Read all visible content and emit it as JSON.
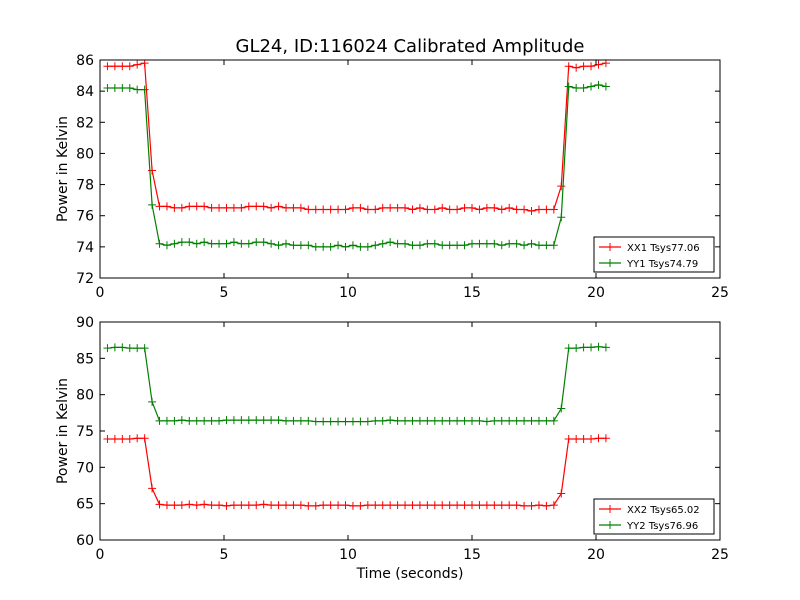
{
  "figure": {
    "title": "GL24, ID:116024 Calibrated Amplitude",
    "xlabel": "Time (seconds)"
  },
  "chart_data": [
    {
      "type": "line",
      "title": "GL24, ID:116024 Calibrated Amplitude",
      "xlabel": "",
      "ylabel": "Power in Kelvin",
      "xlim": [
        0,
        25
      ],
      "ylim": [
        72,
        86
      ],
      "xticks": [
        0,
        5,
        10,
        15,
        20,
        25
      ],
      "yticks": [
        72,
        74,
        76,
        78,
        80,
        82,
        84,
        86
      ],
      "grid": false,
      "legend": "lower-right",
      "series": [
        {
          "name": "XX1 Tsys77.06",
          "color": "#ff0000",
          "x": [
            0.3,
            0.6,
            0.9,
            1.2,
            1.5,
            1.8,
            2.1,
            2.4,
            2.7,
            3.0,
            3.3,
            3.6,
            3.9,
            4.2,
            4.5,
            4.8,
            5.1,
            5.4,
            5.7,
            6.0,
            6.3,
            6.6,
            6.9,
            7.2,
            7.5,
            7.8,
            8.1,
            8.4,
            8.7,
            9.0,
            9.3,
            9.6,
            9.9,
            10.2,
            10.5,
            10.8,
            11.1,
            11.4,
            11.7,
            12.0,
            12.3,
            12.6,
            12.9,
            13.2,
            13.5,
            13.8,
            14.1,
            14.4,
            14.7,
            15.0,
            15.3,
            15.6,
            15.9,
            16.2,
            16.5,
            16.8,
            17.1,
            17.4,
            17.7,
            18.0,
            18.3,
            18.6,
            18.9,
            19.2,
            19.5,
            19.8,
            20.1,
            20.4
          ],
          "y": [
            85.6,
            85.6,
            85.6,
            85.6,
            85.7,
            85.8,
            78.9,
            76.6,
            76.6,
            76.5,
            76.5,
            76.6,
            76.6,
            76.6,
            76.5,
            76.5,
            76.5,
            76.5,
            76.5,
            76.6,
            76.6,
            76.6,
            76.5,
            76.6,
            76.5,
            76.5,
            76.5,
            76.4,
            76.4,
            76.4,
            76.4,
            76.4,
            76.4,
            76.5,
            76.5,
            76.4,
            76.4,
            76.5,
            76.5,
            76.5,
            76.5,
            76.4,
            76.5,
            76.4,
            76.4,
            76.5,
            76.4,
            76.4,
            76.5,
            76.5,
            76.4,
            76.5,
            76.5,
            76.4,
            76.5,
            76.4,
            76.4,
            76.3,
            76.4,
            76.4,
            76.4,
            77.9,
            85.6,
            85.5,
            85.6,
            85.6,
            85.7,
            85.8
          ]
        },
        {
          "name": "YY1 Tsys74.79",
          "color": "#008000",
          "x": [
            0.3,
            0.6,
            0.9,
            1.2,
            1.5,
            1.8,
            2.1,
            2.4,
            2.7,
            3.0,
            3.3,
            3.6,
            3.9,
            4.2,
            4.5,
            4.8,
            5.1,
            5.4,
            5.7,
            6.0,
            6.3,
            6.6,
            6.9,
            7.2,
            7.5,
            7.8,
            8.1,
            8.4,
            8.7,
            9.0,
            9.3,
            9.6,
            9.9,
            10.2,
            10.5,
            10.8,
            11.1,
            11.4,
            11.7,
            12.0,
            12.3,
            12.6,
            12.9,
            13.2,
            13.5,
            13.8,
            14.1,
            14.4,
            14.7,
            15.0,
            15.3,
            15.6,
            15.9,
            16.2,
            16.5,
            16.8,
            17.1,
            17.4,
            17.7,
            18.0,
            18.3,
            18.6,
            18.9,
            19.2,
            19.5,
            19.8,
            20.1,
            20.4
          ],
          "y": [
            84.2,
            84.2,
            84.2,
            84.2,
            84.1,
            84.1,
            76.7,
            74.2,
            74.1,
            74.2,
            74.3,
            74.3,
            74.2,
            74.3,
            74.2,
            74.2,
            74.2,
            74.3,
            74.2,
            74.2,
            74.3,
            74.3,
            74.2,
            74.1,
            74.2,
            74.1,
            74.1,
            74.1,
            74.0,
            74.0,
            74.0,
            74.1,
            74.0,
            74.1,
            74.0,
            74.0,
            74.1,
            74.2,
            74.3,
            74.2,
            74.2,
            74.1,
            74.1,
            74.2,
            74.2,
            74.1,
            74.1,
            74.1,
            74.1,
            74.2,
            74.2,
            74.2,
            74.2,
            74.1,
            74.2,
            74.2,
            74.1,
            74.2,
            74.1,
            74.1,
            74.1,
            75.9,
            84.3,
            84.2,
            84.2,
            84.3,
            84.4,
            84.3
          ]
        }
      ]
    },
    {
      "type": "line",
      "title": "",
      "xlabel": "Time (seconds)",
      "ylabel": "Power in Kelvin",
      "xlim": [
        0,
        25
      ],
      "ylim": [
        60,
        90
      ],
      "xticks": [
        0,
        5,
        10,
        15,
        20,
        25
      ],
      "yticks": [
        60,
        65,
        70,
        75,
        80,
        85,
        90
      ],
      "grid": false,
      "legend": "lower-right",
      "series": [
        {
          "name": "XX2 Tsys65.02",
          "color": "#ff0000",
          "x": [
            0.3,
            0.6,
            0.9,
            1.2,
            1.5,
            1.8,
            2.1,
            2.4,
            2.7,
            3.0,
            3.3,
            3.6,
            3.9,
            4.2,
            4.5,
            4.8,
            5.1,
            5.4,
            5.7,
            6.0,
            6.3,
            6.6,
            6.9,
            7.2,
            7.5,
            7.8,
            8.1,
            8.4,
            8.7,
            9.0,
            9.3,
            9.6,
            9.9,
            10.2,
            10.5,
            10.8,
            11.1,
            11.4,
            11.7,
            12.0,
            12.3,
            12.6,
            12.9,
            13.2,
            13.5,
            13.8,
            14.1,
            14.4,
            14.7,
            15.0,
            15.3,
            15.6,
            15.9,
            16.2,
            16.5,
            16.8,
            17.1,
            17.4,
            17.7,
            18.0,
            18.3,
            18.6,
            18.9,
            19.2,
            19.5,
            19.8,
            20.1,
            20.4
          ],
          "y": [
            73.9,
            73.9,
            73.9,
            73.9,
            74.0,
            74.0,
            67.1,
            64.9,
            64.8,
            64.8,
            64.8,
            64.9,
            64.8,
            64.9,
            64.8,
            64.8,
            64.7,
            64.8,
            64.8,
            64.8,
            64.8,
            64.9,
            64.8,
            64.8,
            64.8,
            64.8,
            64.8,
            64.7,
            64.7,
            64.8,
            64.8,
            64.8,
            64.8,
            64.7,
            64.7,
            64.8,
            64.8,
            64.8,
            64.8,
            64.8,
            64.8,
            64.8,
            64.8,
            64.8,
            64.8,
            64.8,
            64.8,
            64.8,
            64.8,
            64.8,
            64.8,
            64.8,
            64.8,
            64.8,
            64.8,
            64.8,
            64.7,
            64.7,
            64.8,
            64.7,
            64.8,
            66.4,
            73.9,
            73.9,
            73.9,
            73.9,
            74.0,
            74.0
          ]
        },
        {
          "name": "YY2 Tsys76.96",
          "color": "#008000",
          "x": [
            0.3,
            0.6,
            0.9,
            1.2,
            1.5,
            1.8,
            2.1,
            2.4,
            2.7,
            3.0,
            3.3,
            3.6,
            3.9,
            4.2,
            4.5,
            4.8,
            5.1,
            5.4,
            5.7,
            6.0,
            6.3,
            6.6,
            6.9,
            7.2,
            7.5,
            7.8,
            8.1,
            8.4,
            8.7,
            9.0,
            9.3,
            9.6,
            9.9,
            10.2,
            10.5,
            10.8,
            11.1,
            11.4,
            11.7,
            12.0,
            12.3,
            12.6,
            12.9,
            13.2,
            13.5,
            13.8,
            14.1,
            14.4,
            14.7,
            15.0,
            15.3,
            15.6,
            15.9,
            16.2,
            16.5,
            16.8,
            17.1,
            17.4,
            17.7,
            18.0,
            18.3,
            18.6,
            18.9,
            19.2,
            19.5,
            19.8,
            20.1,
            20.4
          ],
          "y": [
            86.4,
            86.5,
            86.5,
            86.4,
            86.4,
            86.4,
            79.0,
            76.4,
            76.4,
            76.4,
            76.5,
            76.4,
            76.4,
            76.4,
            76.4,
            76.4,
            76.5,
            76.5,
            76.5,
            76.5,
            76.5,
            76.5,
            76.5,
            76.5,
            76.4,
            76.4,
            76.4,
            76.4,
            76.3,
            76.3,
            76.3,
            76.3,
            76.3,
            76.3,
            76.3,
            76.3,
            76.4,
            76.4,
            76.5,
            76.4,
            76.4,
            76.4,
            76.4,
            76.4,
            76.4,
            76.4,
            76.4,
            76.4,
            76.4,
            76.4,
            76.4,
            76.3,
            76.4,
            76.4,
            76.4,
            76.4,
            76.4,
            76.4,
            76.4,
            76.4,
            76.4,
            78.1,
            86.4,
            86.4,
            86.5,
            86.5,
            86.6,
            86.5
          ]
        }
      ]
    }
  ]
}
